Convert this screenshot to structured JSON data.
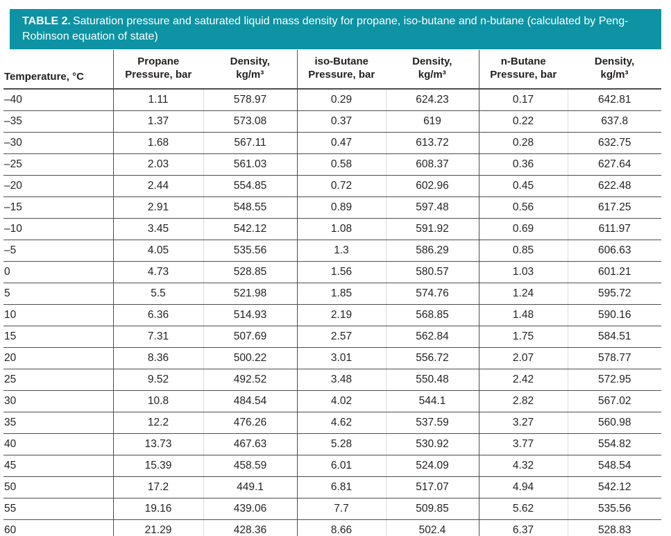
{
  "banner": {
    "label": "TABLE 2.",
    "text": "Saturation pressure and saturated liquid mass density for propane, iso-butane and n-butane (calculated by Peng-Robinson equation of state)"
  },
  "table": {
    "headers": [
      {
        "l1": "Temperature, °C",
        "l2": ""
      },
      {
        "l1": "Propane",
        "l2": "Pressure, bar"
      },
      {
        "l1": "Density,",
        "l2": "kg/m³"
      },
      {
        "l1": "iso-Butane",
        "l2": "Pressure, bar"
      },
      {
        "l1": "Density,",
        "l2": "kg/m³"
      },
      {
        "l1": "n-Butane",
        "l2": "Pressure, bar"
      },
      {
        "l1": "Density,",
        "l2": "kg/m³"
      }
    ],
    "rows": [
      [
        "–40",
        "1.11",
        "578.97",
        "0.29",
        "624.23",
        "0.17",
        "642.81"
      ],
      [
        "–35",
        "1.37",
        "573.08",
        "0.37",
        "619",
        "0.22",
        "637.8"
      ],
      [
        "–30",
        "1.68",
        "567.11",
        "0.47",
        "613.72",
        "0.28",
        "632.75"
      ],
      [
        "–25",
        "2.03",
        "561.03",
        "0.58",
        "608.37",
        "0.36",
        "627.64"
      ],
      [
        "–20",
        "2.44",
        "554.85",
        "0.72",
        "602.96",
        "0.45",
        "622.48"
      ],
      [
        "–15",
        "2.91",
        "548.55",
        "0.89",
        "597.48",
        "0.56",
        "617.25"
      ],
      [
        "–10",
        "3.45",
        "542.12",
        "1.08",
        "591.92",
        "0.69",
        "611.97"
      ],
      [
        "–5",
        "4.05",
        "535.56",
        "1.3",
        "586.29",
        "0.85",
        "606.63"
      ],
      [
        "0",
        "4.73",
        "528.85",
        "1.56",
        "580.57",
        "1.03",
        "601.21"
      ],
      [
        "5",
        "5.5",
        "521.98",
        "1.85",
        "574.76",
        "1.24",
        "595.72"
      ],
      [
        "10",
        "6.36",
        "514.93",
        "2.19",
        "568.85",
        "1.48",
        "590.16"
      ],
      [
        "15",
        "7.31",
        "507.69",
        "2.57",
        "562.84",
        "1.75",
        "584.51"
      ],
      [
        "20",
        "8.36",
        "500.22",
        "3.01",
        "556.72",
        "2.07",
        "578.77"
      ],
      [
        "25",
        "9.52",
        "492.52",
        "3.48",
        "550.48",
        "2.42",
        "572.95"
      ],
      [
        "30",
        "10.8",
        "484.54",
        "4.02",
        "544.1",
        "2.82",
        "567.02"
      ],
      [
        "35",
        "12.2",
        "476.26",
        "4.62",
        "537.59",
        "3.27",
        "560.98"
      ],
      [
        "40",
        "13.73",
        "467.63",
        "5.28",
        "530.92",
        "3.77",
        "554.82"
      ],
      [
        "45",
        "15.39",
        "458.59",
        "6.01",
        "524.09",
        "4.32",
        "548.54"
      ],
      [
        "50",
        "17.2",
        "449.1",
        "6.81",
        "517.07",
        "4.94",
        "542.12"
      ],
      [
        "55",
        "19.16",
        "439.06",
        "7.7",
        "509.85",
        "5.62",
        "535.56"
      ],
      [
        "60",
        "21.29",
        "428.36",
        "8.66",
        "502.4",
        "6.37",
        "528.83"
      ]
    ]
  },
  "colors": {
    "banner_bg": "#0D93A4",
    "banner_text": "#FFFFFF",
    "border_dark": "#4C4D4F",
    "border_light": "#DCDCDC",
    "text": "#231F20"
  }
}
